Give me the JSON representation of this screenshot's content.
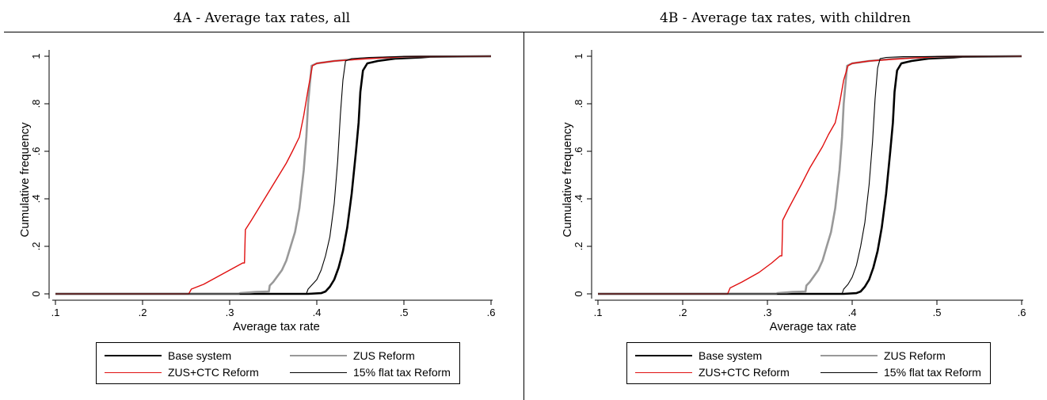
{
  "colors": {
    "base": "#000000",
    "zus": "#999999",
    "zusctc": "#e01010",
    "flat": "#000000",
    "axis": "#000000"
  },
  "chart_data": [
    {
      "type": "line",
      "title": "4A - Average tax rates, all",
      "xlabel": "Average tax rate",
      "ylabel": "Cumulative frequency",
      "xlim": [
        0.1,
        0.6
      ],
      "ylim": [
        0,
        1
      ],
      "xticks": [
        ".1",
        ".2",
        ".3",
        ".4",
        ".5",
        ".6"
      ],
      "yticks": [
        "0",
        ".2",
        ".4",
        ".6",
        ".8",
        "1"
      ],
      "grid": false,
      "legend_position": "bottom",
      "series": [
        {
          "name": "Base system",
          "key": "base",
          "width": 2.6,
          "points": [
            [
              0.1,
              0
            ],
            [
              0.39,
              0
            ],
            [
              0.405,
              0.003
            ],
            [
              0.41,
              0.01
            ],
            [
              0.415,
              0.03
            ],
            [
              0.42,
              0.06
            ],
            [
              0.425,
              0.11
            ],
            [
              0.43,
              0.18
            ],
            [
              0.435,
              0.28
            ],
            [
              0.44,
              0.42
            ],
            [
              0.445,
              0.6
            ],
            [
              0.448,
              0.72
            ],
            [
              0.45,
              0.85
            ],
            [
              0.453,
              0.94
            ],
            [
              0.458,
              0.97
            ],
            [
              0.47,
              0.98
            ],
            [
              0.49,
              0.99
            ],
            [
              0.52,
              0.995
            ],
            [
              0.53,
              0.998
            ],
            [
              0.6,
              1
            ]
          ]
        },
        {
          "name": "ZUS Reform",
          "key": "zus",
          "width": 2.6,
          "points": [
            [
              0.1,
              0
            ],
            [
              0.31,
              0
            ],
            [
              0.312,
              0.003
            ],
            [
              0.33,
              0.008
            ],
            [
              0.345,
              0.01
            ],
            [
              0.346,
              0.035
            ],
            [
              0.35,
              0.05
            ],
            [
              0.36,
              0.1
            ],
            [
              0.365,
              0.14
            ],
            [
              0.37,
              0.2
            ],
            [
              0.375,
              0.26
            ],
            [
              0.38,
              0.36
            ],
            [
              0.385,
              0.52
            ],
            [
              0.388,
              0.66
            ],
            [
              0.39,
              0.8
            ],
            [
              0.394,
              0.96
            ],
            [
              0.4,
              0.97
            ],
            [
              0.42,
              0.98
            ],
            [
              0.45,
              0.99
            ],
            [
              0.5,
              0.998
            ],
            [
              0.52,
              1
            ],
            [
              0.6,
              1
            ]
          ]
        },
        {
          "name": "ZUS+CTC Reform",
          "key": "zusctc",
          "width": 1.4,
          "points": [
            [
              0.1,
              0
            ],
            [
              0.253,
              0
            ],
            [
              0.256,
              0.02
            ],
            [
              0.27,
              0.04
            ],
            [
              0.29,
              0.08
            ],
            [
              0.305,
              0.11
            ],
            [
              0.315,
              0.13
            ],
            [
              0.317,
              0.13
            ],
            [
              0.318,
              0.27
            ],
            [
              0.325,
              0.31
            ],
            [
              0.34,
              0.4
            ],
            [
              0.35,
              0.46
            ],
            [
              0.365,
              0.55
            ],
            [
              0.372,
              0.6
            ],
            [
              0.38,
              0.66
            ],
            [
              0.385,
              0.75
            ],
            [
              0.39,
              0.86
            ],
            [
              0.395,
              0.96
            ],
            [
              0.4,
              0.97
            ],
            [
              0.42,
              0.98
            ],
            [
              0.44,
              0.985
            ],
            [
              0.46,
              0.99
            ],
            [
              0.5,
              0.998
            ],
            [
              0.6,
              1
            ]
          ]
        },
        {
          "name": "15% flat tax Reform",
          "key": "flat",
          "width": 1.1,
          "points": [
            [
              0.1,
              0
            ],
            [
              0.388,
              0
            ],
            [
              0.39,
              0.02
            ],
            [
              0.395,
              0.04
            ],
            [
              0.4,
              0.06
            ],
            [
              0.405,
              0.1
            ],
            [
              0.41,
              0.16
            ],
            [
              0.415,
              0.24
            ],
            [
              0.42,
              0.38
            ],
            [
              0.424,
              0.56
            ],
            [
              0.427,
              0.75
            ],
            [
              0.43,
              0.9
            ],
            [
              0.433,
              0.98
            ],
            [
              0.44,
              0.99
            ],
            [
              0.46,
              0.995
            ],
            [
              0.5,
              0.999
            ],
            [
              0.6,
              1
            ]
          ]
        }
      ]
    },
    {
      "type": "line",
      "title": "4B - Average tax rates, with children",
      "xlabel": "Average tax rate",
      "ylabel": "Cumulative frequency",
      "xlim": [
        0.1,
        0.6
      ],
      "ylim": [
        0,
        1
      ],
      "xticks": [
        ".1",
        ".2",
        ".3",
        ".4",
        ".5",
        ".6"
      ],
      "yticks": [
        "0",
        ".2",
        ".4",
        ".6",
        ".8",
        "1"
      ],
      "grid": false,
      "legend_position": "bottom",
      "series": [
        {
          "name": "Base system",
          "key": "base",
          "width": 2.6,
          "points": [
            [
              0.1,
              0
            ],
            [
              0.39,
              0
            ],
            [
              0.405,
              0.003
            ],
            [
              0.41,
              0.01
            ],
            [
              0.415,
              0.03
            ],
            [
              0.42,
              0.06
            ],
            [
              0.425,
              0.11
            ],
            [
              0.43,
              0.18
            ],
            [
              0.435,
              0.28
            ],
            [
              0.44,
              0.42
            ],
            [
              0.445,
              0.6
            ],
            [
              0.448,
              0.72
            ],
            [
              0.45,
              0.85
            ],
            [
              0.453,
              0.94
            ],
            [
              0.458,
              0.97
            ],
            [
              0.47,
              0.98
            ],
            [
              0.49,
              0.99
            ],
            [
              0.52,
              0.995
            ],
            [
              0.53,
              0.998
            ],
            [
              0.6,
              1
            ]
          ]
        },
        {
          "name": "ZUS Reform",
          "key": "zus",
          "width": 2.6,
          "points": [
            [
              0.1,
              0
            ],
            [
              0.31,
              0
            ],
            [
              0.312,
              0.003
            ],
            [
              0.33,
              0.008
            ],
            [
              0.345,
              0.01
            ],
            [
              0.346,
              0.035
            ],
            [
              0.35,
              0.05
            ],
            [
              0.36,
              0.1
            ],
            [
              0.365,
              0.14
            ],
            [
              0.37,
              0.2
            ],
            [
              0.375,
              0.26
            ],
            [
              0.38,
              0.36
            ],
            [
              0.385,
              0.52
            ],
            [
              0.388,
              0.66
            ],
            [
              0.39,
              0.8
            ],
            [
              0.394,
              0.96
            ],
            [
              0.4,
              0.97
            ],
            [
              0.42,
              0.98
            ],
            [
              0.45,
              0.99
            ],
            [
              0.5,
              0.998
            ],
            [
              0.52,
              1
            ],
            [
              0.6,
              1
            ]
          ]
        },
        {
          "name": "ZUS+CTC Reform",
          "key": "zusctc",
          "width": 1.4,
          "points": [
            [
              0.1,
              0
            ],
            [
              0.253,
              0
            ],
            [
              0.256,
              0.025
            ],
            [
              0.27,
              0.05
            ],
            [
              0.29,
              0.09
            ],
            [
              0.305,
              0.13
            ],
            [
              0.315,
              0.16
            ],
            [
              0.317,
              0.16
            ],
            [
              0.318,
              0.31
            ],
            [
              0.325,
              0.36
            ],
            [
              0.34,
              0.46
            ],
            [
              0.35,
              0.53
            ],
            [
              0.365,
              0.62
            ],
            [
              0.372,
              0.67
            ],
            [
              0.38,
              0.72
            ],
            [
              0.385,
              0.8
            ],
            [
              0.39,
              0.9
            ],
            [
              0.395,
              0.96
            ],
            [
              0.4,
              0.97
            ],
            [
              0.42,
              0.98
            ],
            [
              0.44,
              0.985
            ],
            [
              0.46,
              0.99
            ],
            [
              0.5,
              0.998
            ],
            [
              0.6,
              1
            ]
          ]
        },
        {
          "name": "15% flat tax Reform",
          "key": "flat",
          "width": 1.1,
          "points": [
            [
              0.1,
              0
            ],
            [
              0.388,
              0
            ],
            [
              0.39,
              0.02
            ],
            [
              0.395,
              0.04
            ],
            [
              0.4,
              0.07
            ],
            [
              0.405,
              0.12
            ],
            [
              0.41,
              0.2
            ],
            [
              0.415,
              0.3
            ],
            [
              0.42,
              0.46
            ],
            [
              0.424,
              0.64
            ],
            [
              0.427,
              0.82
            ],
            [
              0.43,
              0.95
            ],
            [
              0.433,
              0.99
            ],
            [
              0.44,
              0.995
            ],
            [
              0.46,
              0.998
            ],
            [
              0.6,
              1
            ]
          ]
        }
      ]
    }
  ]
}
